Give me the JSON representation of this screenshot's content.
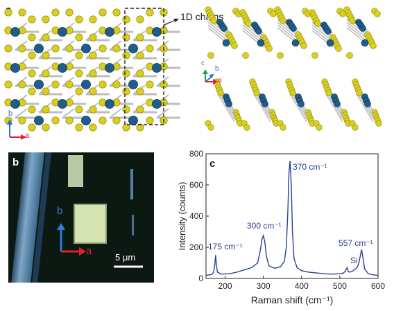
{
  "panels": {
    "a": {
      "letter": "a",
      "annotation": "1D chains",
      "axes_left": {
        "b": "b",
        "a": "a"
      },
      "axes_right": {
        "c": "c",
        "b": "b",
        "a": "a"
      },
      "colors": {
        "metal": "#1f5e8c",
        "chalcogen": "#d9cf1e",
        "bond": "#bdbdbd"
      }
    },
    "b": {
      "letter": "b",
      "axis_b": "b",
      "axis_a": "a",
      "scale_label": "5 μm",
      "colors": {
        "background": "#0d1a14",
        "flake": "#c9dba4",
        "axis_b": "#2a7fd6",
        "axis_a": "#e2202b"
      }
    },
    "c": {
      "letter": "c",
      "xlabel": "Raman shift (cm⁻¹)",
      "ylabel": "Intensity (counts)",
      "peak_labels": [
        "175 cm⁻¹",
        "300 cm⁻¹",
        "370 cm⁻¹",
        "Si",
        "557 cm⁻¹"
      ]
    }
  },
  "chart_data": {
    "type": "line",
    "xlabel": "Raman shift (cm⁻¹)",
    "ylabel": "Intensity (counts)",
    "xlim": [
      150,
      600
    ],
    "ylim": [
      0,
      800
    ],
    "xticks": [
      200,
      300,
      400,
      500,
      600
    ],
    "yticks": [
      0,
      200,
      400,
      600,
      800
    ],
    "line_color": "#2b3f94",
    "series": [
      {
        "x": [
          150,
          165,
          170,
          173,
          175,
          177,
          180,
          190,
          210,
          230,
          250,
          270,
          285,
          292,
          296,
          300,
          304,
          308,
          315,
          330,
          345,
          355,
          360,
          364,
          367,
          370,
          373,
          376,
          380,
          388,
          400,
          420,
          440,
          460,
          480,
          500,
          510,
          515,
          519,
          522,
          526,
          535,
          545,
          550,
          554,
          557,
          560,
          565,
          575,
          590,
          600
        ],
        "values": [
          20,
          25,
          40,
          90,
          150,
          90,
          40,
          28,
          30,
          40,
          55,
          70,
          100,
          180,
          250,
          275,
          230,
          140,
          80,
          65,
          75,
          110,
          200,
          420,
          680,
          755,
          600,
          300,
          130,
          70,
          50,
          40,
          35,
          30,
          28,
          30,
          35,
          50,
          70,
          45,
          40,
          50,
          70,
          100,
          150,
          185,
          140,
          60,
          30,
          22,
          20
        ]
      }
    ],
    "peak_labels": [
      "175 cm⁻¹",
      "300 cm⁻¹",
      "370 cm⁻¹",
      "Si",
      "557 cm⁻¹"
    ]
  }
}
